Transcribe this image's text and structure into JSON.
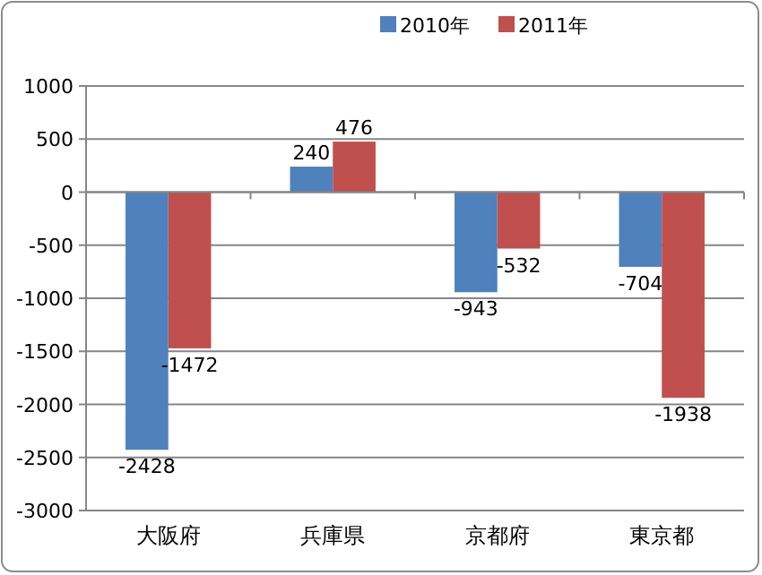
{
  "chart_data": {
    "type": "bar",
    "categories": [
      "大阪府",
      "兵庫県",
      "京都府",
      "東京都"
    ],
    "series": [
      {
        "name": "2010年",
        "color": "#4f81bd",
        "values": [
          -2428,
          240,
          -943,
          -704
        ]
      },
      {
        "name": "2011年",
        "color": "#c0504d",
        "values": [
          -1472,
          476,
          -532,
          -1938
        ]
      }
    ],
    "ylim": [
      -3000,
      1000
    ],
    "yticks": [
      -3000,
      -2500,
      -2000,
      -1500,
      -1000,
      -500,
      0,
      500,
      1000
    ],
    "grid": "y",
    "legend": "top",
    "data_labels": true
  }
}
